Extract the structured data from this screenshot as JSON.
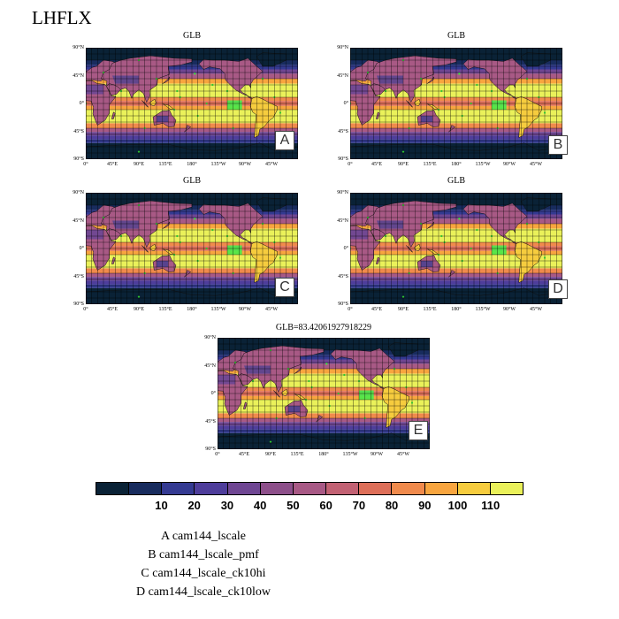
{
  "figure_title": "LHFLX",
  "y_ticks": [
    "90°N",
    "45°N",
    "0°",
    "45°S",
    "90°S"
  ],
  "x_ticks": [
    "0°",
    "45°E",
    "90°E",
    "135°E",
    "180°",
    "135°W",
    "90°W",
    "45°W"
  ],
  "panels": [
    {
      "label": "A",
      "title": "GLB"
    },
    {
      "label": "B",
      "title": "GLB"
    },
    {
      "label": "C",
      "title": "GLB"
    },
    {
      "label": "D",
      "title": "GLB"
    },
    {
      "label": "E",
      "title": "GLB=83.42061927918229"
    }
  ],
  "colorbar": {
    "colors": [
      "#0a2236",
      "#182c5e",
      "#343a92",
      "#4e3d9b",
      "#6f4693",
      "#8d4f8a",
      "#a85985",
      "#c26173",
      "#de6f59",
      "#f08a4c",
      "#f8a53f",
      "#f6cc3e",
      "#eaf15a"
    ],
    "labels": [
      "10",
      "20",
      "30",
      "40",
      "50",
      "60",
      "70",
      "80",
      "90",
      "100",
      "110"
    ]
  },
  "legend": [
    "A  cam144_lscale",
    "B  cam144_lscale_pmf",
    "C  cam144_lscale_ck10hi",
    "D  cam144_lscale_ck10low"
  ]
}
